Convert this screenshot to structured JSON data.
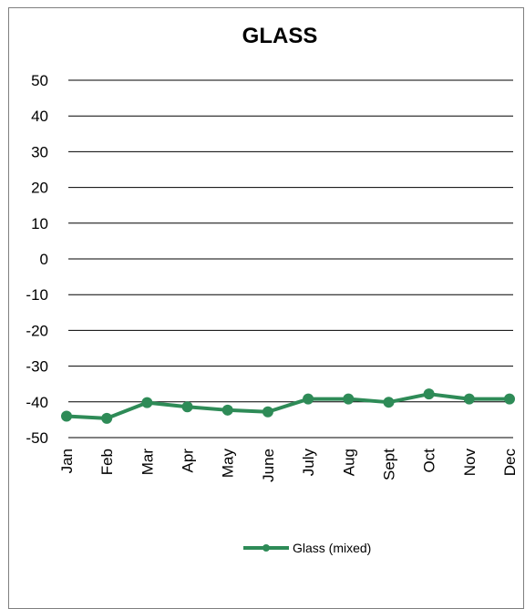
{
  "chart_data": {
    "type": "line",
    "title": "GLASS",
    "xlabel": "",
    "ylabel": "",
    "categories": [
      "Jan",
      "Feb",
      "Mar",
      "Apr",
      "May",
      "June",
      "July",
      "Aug",
      "Sept",
      "Oct",
      "Nov",
      "Dec"
    ],
    "series": [
      {
        "name": "Glass (mixed)",
        "color": "#2e8b57",
        "values": [
          -44.0,
          -44.6,
          -40.2,
          -41.4,
          -42.3,
          -42.8,
          -39.2,
          -39.2,
          -40.1,
          -37.8,
          -39.2,
          -39.2
        ]
      }
    ],
    "ylim": [
      -50,
      50
    ],
    "yticks": [
      50,
      40,
      30,
      20,
      10,
      0,
      -10,
      -20,
      -30,
      -40,
      -50
    ],
    "grid": true,
    "legend_position": "bottom"
  }
}
